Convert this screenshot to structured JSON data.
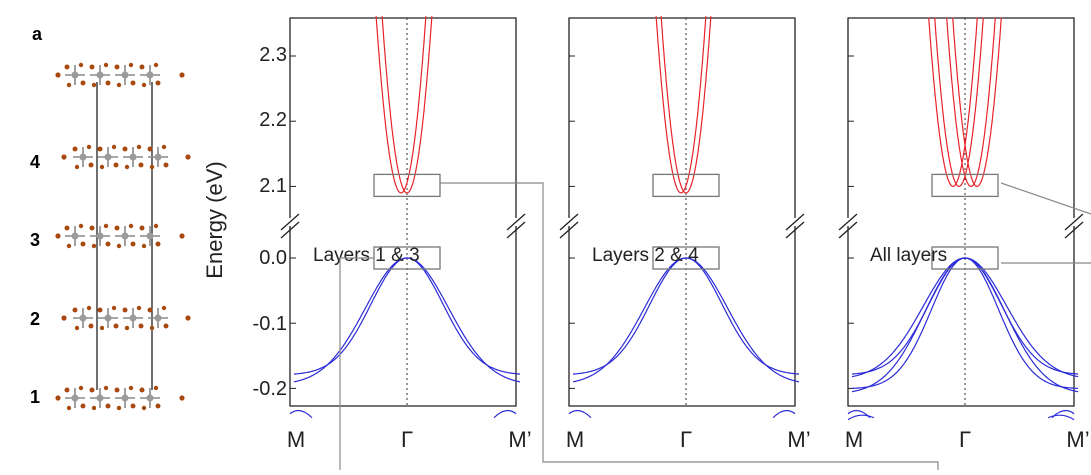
{
  "panel_label": "a",
  "layer_numbers": [
    "4",
    "3",
    "2",
    "1"
  ],
  "y_axis_label": "Energy (eV)",
  "y_ticks_upper": [
    "2.3",
    "2.2",
    "2.1"
  ],
  "y_ticks_lower": [
    "0.0",
    "-0.1",
    "-0.2"
  ],
  "x_ticks": [
    "M",
    "Γ",
    "M’"
  ],
  "panels": [
    {
      "label": "Layers 1 & 3"
    },
    {
      "label": "Layers 2 & 4"
    },
    {
      "label": "All layers"
    }
  ],
  "colors": {
    "conduction_band": "#e8232a",
    "valence_band": "#2b2bd8",
    "frame": "#222222",
    "connector": "#888888",
    "atom_grey": "#9a9a9a",
    "atom_brown": "#a84a10"
  },
  "axes": {
    "upper_energy_range_eV": [
      2.07,
      2.35
    ],
    "lower_energy_range_eV": [
      -0.25,
      0.03
    ],
    "axis_break_between_eV": [
      0.03,
      2.07
    ]
  }
}
